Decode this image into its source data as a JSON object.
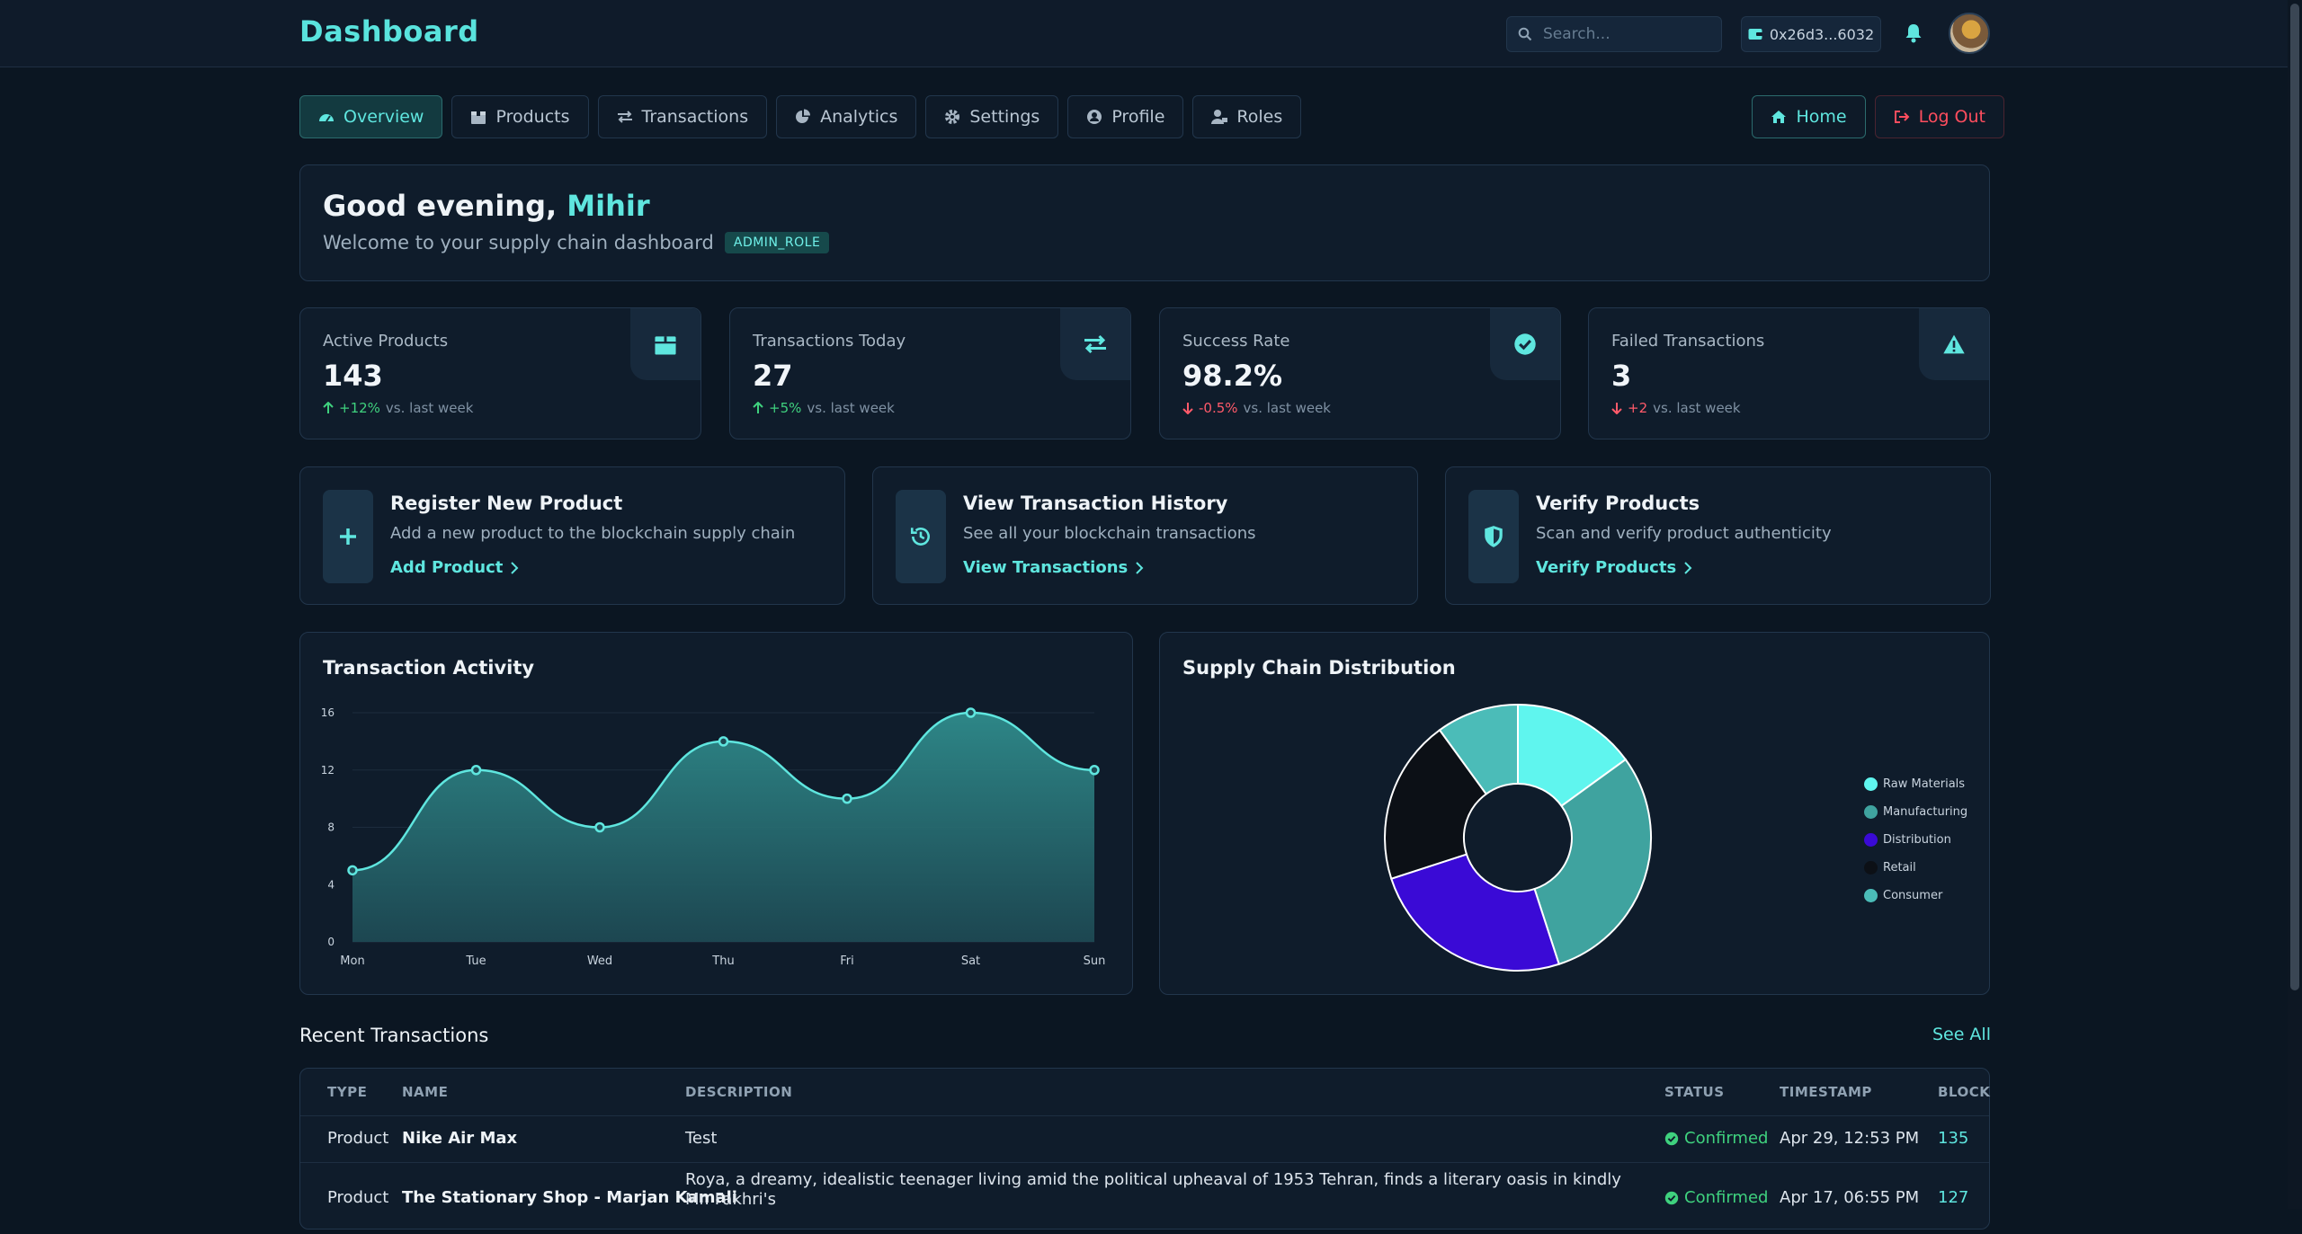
{
  "header": {
    "title": "Dashboard",
    "search_placeholder": "Search...",
    "wallet": "0x26d3...6032"
  },
  "nav": {
    "items": [
      {
        "label": "Overview",
        "icon": "gauge-icon"
      },
      {
        "label": "Products",
        "icon": "box-icon"
      },
      {
        "label": "Transactions",
        "icon": "exchange-icon"
      },
      {
        "label": "Analytics",
        "icon": "pie-icon"
      },
      {
        "label": "Settings",
        "icon": "gear-icon"
      },
      {
        "label": "Profile",
        "icon": "user-circle-icon"
      },
      {
        "label": "Roles",
        "icon": "user-tag-icon"
      }
    ],
    "home": "Home",
    "logout": "Log Out"
  },
  "welcome": {
    "greeting": "Good evening, ",
    "name": "Mihir",
    "subtitle": "Welcome to your supply chain dashboard",
    "role": "ADMIN_ROLE"
  },
  "stats": [
    {
      "label": "Active Products",
      "value": "143",
      "change": "+12%",
      "suffix": "vs. last week",
      "dir": "up",
      "icon": "box-icon"
    },
    {
      "label": "Transactions Today",
      "value": "27",
      "change": "+5%",
      "suffix": "vs. last week",
      "dir": "up",
      "icon": "exchange-icon"
    },
    {
      "label": "Success Rate",
      "value": "98.2%",
      "change": "-0.5%",
      "suffix": "vs. last week",
      "dir": "down",
      "icon": "check-circle-icon"
    },
    {
      "label": "Failed Transactions",
      "value": "3",
      "change": "+2",
      "suffix": "vs. last week",
      "dir": "down",
      "icon": "warning-icon"
    }
  ],
  "actions": [
    {
      "title": "Register New Product",
      "desc": "Add a new product to the blockchain supply chain",
      "link": "Add Product",
      "icon": "plus-icon"
    },
    {
      "title": "View Transaction History",
      "desc": "See all your blockchain transactions",
      "link": "View Transactions",
      "icon": "history-icon"
    },
    {
      "title": "Verify Products",
      "desc": "Scan and verify product authenticity",
      "link": "Verify Products",
      "icon": "shield-icon"
    }
  ],
  "activity_chart": {
    "title": "Transaction Activity"
  },
  "distribution_chart": {
    "title": "Supply Chain Distribution"
  },
  "chart_data": [
    {
      "type": "area",
      "title": "Transaction Activity",
      "categories": [
        "Mon",
        "Tue",
        "Wed",
        "Thu",
        "Fri",
        "Sat",
        "Sun"
      ],
      "values": [
        5,
        12,
        8,
        14,
        10,
        16,
        12
      ],
      "ylim": [
        0,
        16
      ],
      "yticks": [
        0,
        4,
        8,
        12,
        16
      ],
      "color": "#5fe6df",
      "grid": true
    },
    {
      "type": "pie",
      "title": "Supply Chain Distribution",
      "labels": [
        "Raw Materials",
        "Manufacturing",
        "Distribution",
        "Retail",
        "Consumer"
      ],
      "values": [
        15,
        30,
        25,
        20,
        10
      ],
      "colors": [
        "#5ff5ee",
        "#3fa39f",
        "#3a0ad6",
        "#0c1016",
        "#4bbcb8"
      ],
      "donut": true,
      "legend": "right"
    }
  ],
  "recent": {
    "title": "Recent Transactions",
    "see_all": "See All",
    "columns": [
      "TYPE",
      "NAME",
      "DESCRIPTION",
      "STATUS",
      "TIMESTAMP",
      "BLOCK"
    ],
    "rows": [
      {
        "type": "Product",
        "name": "Nike Air Max",
        "desc": "Test",
        "status": "Confirmed",
        "time": "Apr 29, 12:53 PM",
        "block": "135"
      },
      {
        "type": "Product",
        "name": "The Stationary Shop - Marjan Kamali",
        "desc": "Roya, a dreamy, idealistic teenager living amid the political upheaval of 1953 Tehran, finds a literary oasis in kindly Mr. Fakhri's",
        "status": "Confirmed",
        "time": "Apr 17, 06:55 PM",
        "block": "127"
      }
    ]
  }
}
